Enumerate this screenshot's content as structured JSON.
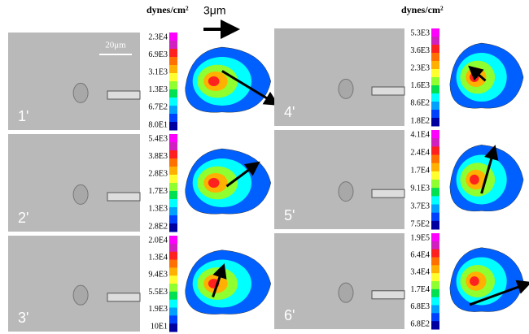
{
  "header": {
    "unit_left": "dynes/cm²",
    "unit_right": "dynes/cm²",
    "arrow_scale": "3μm",
    "scale_bar": "20μm"
  },
  "panels": [
    {
      "label": "1'",
      "scale": [
        "2.3E4",
        "6.9E3",
        "3.1E3",
        "1.3E3",
        "6.7E2",
        "8.0E1"
      ]
    },
    {
      "label": "2'",
      "scale": [
        "5.4E3",
        "3.8E3",
        "2.8E3",
        "1.7E3",
        "1.3E3",
        "2.8E2"
      ]
    },
    {
      "label": "3'",
      "scale": [
        "2.0E4",
        "1.3E4",
        "9.4E3",
        "5.5E3",
        "1.9E3",
        "10E1"
      ]
    },
    {
      "label": "4'",
      "scale": [
        "5.3E3",
        "3.6E3",
        "2.3E3",
        "1.6E3",
        "8.6E2",
        "1.8E2"
      ]
    },
    {
      "label": "5'",
      "scale": [
        "4.1E4",
        "2.4E4",
        "1.7E4",
        "9.1E3",
        "3.7E3",
        "7.5E2"
      ]
    },
    {
      "label": "6'",
      "scale": [
        "1.9E5",
        "6.4E4",
        "3.4E4",
        "1.7E4",
        "6.8E3",
        "6.8E2"
      ]
    }
  ]
}
